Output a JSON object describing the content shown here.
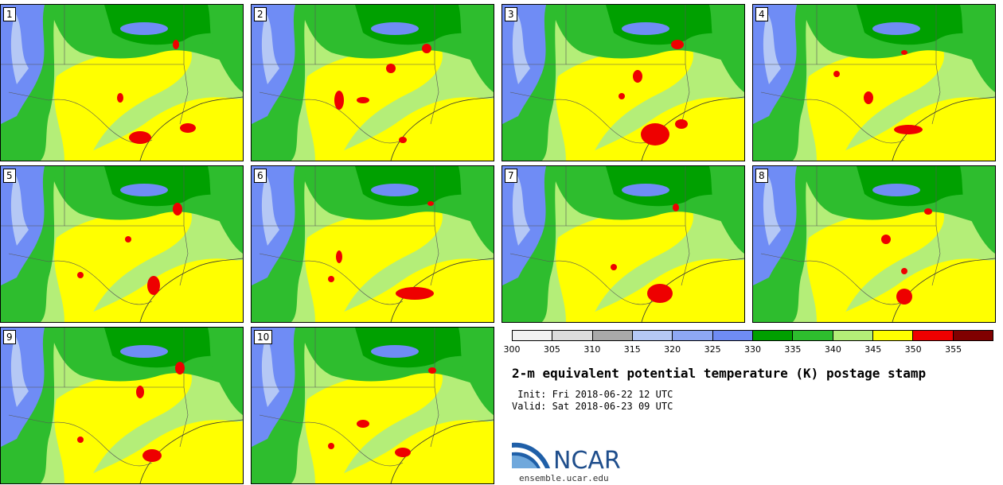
{
  "panels": [
    {
      "label": "1",
      "red": [
        [
          175,
          172,
          14,
          8
        ],
        [
          235,
          160,
          10,
          6
        ],
        [
          150,
          122,
          4,
          6
        ],
        [
          220,
          55,
          4,
          6
        ]
      ]
    },
    {
      "label": "2",
      "red": [
        [
          425,
          125,
          6,
          12
        ],
        [
          455,
          125,
          8,
          4
        ],
        [
          490,
          85,
          6,
          6
        ],
        [
          535,
          60,
          6,
          6
        ],
        [
          505,
          175,
          5,
          4
        ]
      ]
    },
    {
      "label": "3",
      "red": [
        [
          822,
          168,
          18,
          14
        ],
        [
          855,
          155,
          8,
          6
        ],
        [
          800,
          95,
          6,
          8
        ],
        [
          850,
          55,
          8,
          6
        ],
        [
          780,
          120,
          4,
          4
        ]
      ]
    },
    {
      "label": "4",
      "red": [
        [
          1140,
          162,
          18,
          6
        ],
        [
          1090,
          122,
          6,
          8
        ],
        [
          1050,
          92,
          4,
          4
        ],
        [
          1135,
          65,
          4,
          3
        ]
      ]
    },
    {
      "label": "5",
      "red": [
        [
          192,
          358,
          8,
          12
        ],
        [
          222,
          262,
          6,
          8
        ],
        [
          160,
          300,
          4,
          4
        ],
        [
          100,
          345,
          4,
          4
        ]
      ]
    },
    {
      "label": "6",
      "red": [
        [
          520,
          368,
          24,
          8
        ],
        [
          425,
          322,
          4,
          8
        ],
        [
          540,
          255,
          4,
          3
        ],
        [
          415,
          350,
          4,
          4
        ]
      ]
    },
    {
      "label": "7",
      "red": [
        [
          828,
          368,
          16,
          12
        ],
        [
          848,
          260,
          4,
          5
        ],
        [
          770,
          335,
          4,
          4
        ]
      ]
    },
    {
      "label": "8",
      "red": [
        [
          1135,
          372,
          10,
          10
        ],
        [
          1112,
          300,
          6,
          6
        ],
        [
          1165,
          265,
          5,
          4
        ],
        [
          1135,
          340,
          4,
          4
        ]
      ]
    },
    {
      "label": "9",
      "red": [
        [
          190,
          572,
          12,
          8
        ],
        [
          225,
          462,
          6,
          8
        ],
        [
          175,
          492,
          5,
          8
        ],
        [
          100,
          552,
          4,
          4
        ]
      ]
    },
    {
      "label": "10",
      "red": [
        [
          455,
          532,
          8,
          5
        ],
        [
          505,
          568,
          10,
          6
        ],
        [
          542,
          465,
          5,
          4
        ],
        [
          415,
          560,
          4,
          4
        ]
      ]
    }
  ],
  "colorbar": {
    "colors": [
      "#f2f2f2",
      "#dcdcdc",
      "#a9a9a9",
      "#b5c8f5",
      "#8ea8f5",
      "#6f8cf5",
      "#00a000",
      "#2ebd2e",
      "#b4ee78",
      "#ffff00",
      "#ee0000",
      "#800000"
    ],
    "ticks": [
      "300",
      "305",
      "310",
      "315",
      "320",
      "325",
      "330",
      "335",
      "340",
      "345",
      "350",
      "355"
    ]
  },
  "title": "2-m equivalent potential temperature (K) postage stamp",
  "init": " Init: Fri 2018-06-22 12 UTC",
  "valid": "Valid: Sat 2018-06-23 09 UTC",
  "logo_text": "NCAR",
  "site": "ensemble.ucar.edu",
  "field_colors": {
    "cold": "#6f8cf5",
    "cool": "#b5c8f5",
    "dark_green": "#00a000",
    "green": "#2ebd2e",
    "light_green": "#b4ee78",
    "yellow": "#ffff00",
    "red": "#ee0000"
  }
}
